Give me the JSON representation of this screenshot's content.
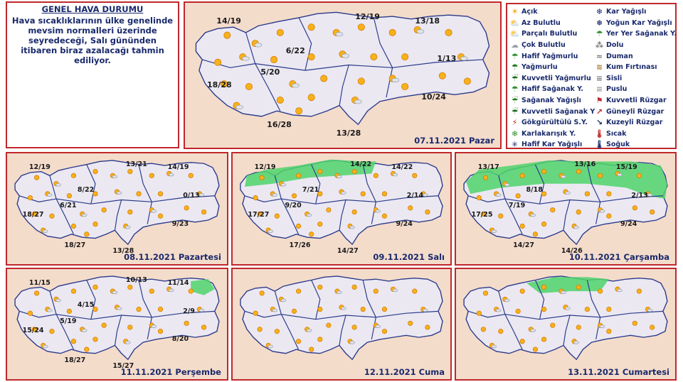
{
  "info": {
    "heading": "GENEL HAVA DURUMU",
    "text": "Hava sıcaklıklarının ülke genelinde mevsim normalleri üzerinde seyredeceği, Salı gününden itibaren biraz azalacağı tahmin ediliyor."
  },
  "legend": {
    "col1": [
      {
        "icon": "sun-icon",
        "glyph": "☀",
        "color": "#f2a100",
        "label": "Açık"
      },
      {
        "icon": "few-clouds-icon",
        "glyph": "⛅",
        "color": "#e0a040",
        "label": "Az Bulutlu"
      },
      {
        "icon": "partly-cloudy-icon",
        "glyph": "⛅",
        "color": "#c98a3a",
        "label": "Parçalı Bulutlu"
      },
      {
        "icon": "cloudy-icon",
        "glyph": "☁",
        "color": "#9aa0a8",
        "label": "Çok Bulutlu"
      },
      {
        "icon": "light-rain-icon",
        "glyph": "☂",
        "color": "#2f8f2f",
        "label": "Hafif Yağmurlu"
      },
      {
        "icon": "rain-icon",
        "glyph": "☂",
        "color": "#1f7a1f",
        "label": "Yağmurlu"
      },
      {
        "icon": "heavy-rain-icon",
        "glyph": "☔",
        "color": "#156615",
        "label": "Kuvvetli Yağmurlu"
      },
      {
        "icon": "light-shower-icon",
        "glyph": "☂",
        "color": "#2f8f2f",
        "label": "Hafif Sağanak Y."
      },
      {
        "icon": "shower-icon",
        "glyph": "☔",
        "color": "#1f7a1f",
        "label": "Sağanak Yağışlı"
      },
      {
        "icon": "heavy-shower-icon",
        "glyph": "☔",
        "color": "#156615",
        "label": "Kuvvetli Sağanak Y"
      },
      {
        "icon": "thunderstorm-icon",
        "glyph": "⚡",
        "color": "#c0282c",
        "label": "Gökgürültülü S.Y."
      },
      {
        "icon": "sleet-icon",
        "glyph": "❄",
        "color": "#2f8f2f",
        "label": "Karlakarışık Y."
      },
      {
        "icon": "light-snow-icon",
        "glyph": "✳",
        "color": "#1a2a6c",
        "label": "Hafif Kar Yağışlı"
      }
    ],
    "col2": [
      {
        "icon": "snow-icon",
        "glyph": "❄",
        "color": "#1a2a6c",
        "label": "Kar Yağışlı"
      },
      {
        "icon": "heavy-snow-icon",
        "glyph": "❅",
        "color": "#1a2a6c",
        "label": "Yoğun Kar Yağışlı"
      },
      {
        "icon": "scattered-shower-icon",
        "glyph": "☂",
        "color": "#2f8f2f",
        "label": "Yer Yer Sağanak Y."
      },
      {
        "icon": "hail-icon",
        "glyph": "⁂",
        "color": "#7a7a7a",
        "label": "Dolu"
      },
      {
        "icon": "smoke-icon",
        "glyph": "≈",
        "color": "#7a7a7a",
        "label": "Duman"
      },
      {
        "icon": "sandstorm-icon",
        "glyph": "≋",
        "color": "#b07a3a",
        "label": "Kum Fırtınası"
      },
      {
        "icon": "fog-icon",
        "glyph": "≡",
        "color": "#7a7a7a",
        "label": "Sisli"
      },
      {
        "icon": "mist-icon",
        "glyph": "≡",
        "color": "#9a9a9a",
        "label": "Puslu"
      },
      {
        "icon": "strong-wind-icon",
        "glyph": "⚑",
        "color": "#c0282c",
        "label": "Kuvvetli Rüzgar"
      },
      {
        "icon": "south-wind-icon",
        "glyph": "↗",
        "color": "#c0282c",
        "label": "Güneyli Rüzgar"
      },
      {
        "icon": "north-wind-icon",
        "glyph": "↘",
        "color": "#1a2a6c",
        "label": "Kuzeyli Rüzgar"
      },
      {
        "icon": "hot-icon",
        "glyph": "🌡",
        "color": "#c0282c",
        "label": "Sıcak"
      },
      {
        "icon": "cold-icon",
        "glyph": "🌡",
        "color": "#1a2a6c",
        "label": "Soğuk"
      }
    ]
  },
  "maps": [
    {
      "date": "07.11.2021 Pazar",
      "rain_zone": "none",
      "temps": [
        "14/19",
        "12/19",
        "13/18",
        "1/13",
        "6/22",
        "5/20",
        "18/28",
        "10/24",
        "16/28",
        "13/28"
      ]
    },
    {
      "date": "08.11.2021 Pazartesi",
      "rain_zone": "none",
      "temps": [
        "12/19",
        "13/21",
        "14/19",
        "0/13",
        "8/22",
        "6/21",
        "18/27",
        "9/23",
        "18/27",
        "13/28"
      ]
    },
    {
      "date": "09.11.2021 Salı",
      "rain_zone": "north",
      "temps": [
        "12/19",
        "14/22",
        "14/22",
        "2/14",
        "7/21",
        "9/20",
        "17/27",
        "9/24",
        "17/26",
        "14/27"
      ]
    },
    {
      "date": "10.11.2021 Çarşamba",
      "rain_zone": "north-wide",
      "temps": [
        "13/17",
        "13/16",
        "15/19",
        "2/13",
        "8/18",
        "7/19",
        "17/25",
        "9/24",
        "14/27",
        "14/26"
      ]
    },
    {
      "date": "11.11.2021 Perşembe",
      "rain_zone": "northeast",
      "temps": [
        "11/15",
        "10/13",
        "11/14",
        "2/9",
        "4/15",
        "5/19",
        "15/24",
        "8/20",
        "18/27",
        "15/27"
      ]
    },
    {
      "date": "12.11.2021 Cuma",
      "rain_zone": "none",
      "temps": []
    },
    {
      "date": "13.11.2021 Cumartesi",
      "rain_zone": "north-center",
      "temps": []
    }
  ]
}
